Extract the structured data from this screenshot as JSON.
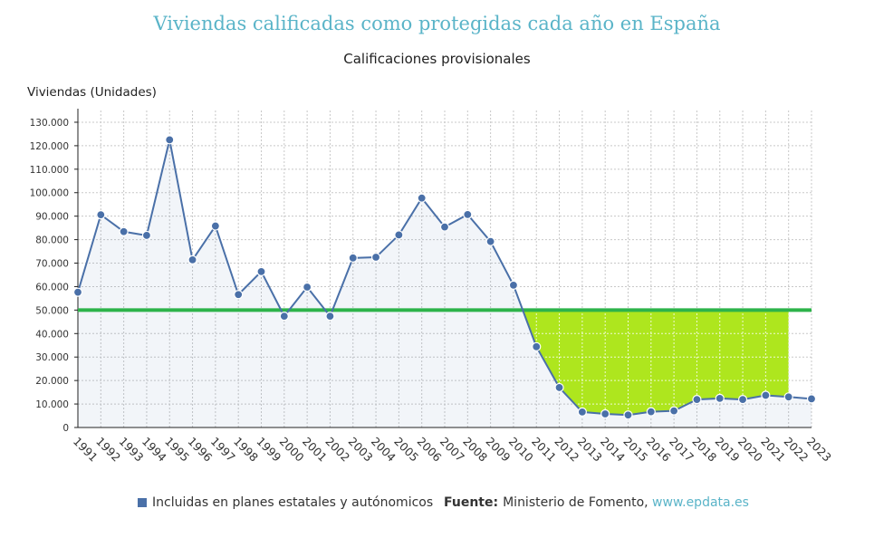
{
  "chart_data": {
    "type": "line",
    "title": "Viviendas calificadas como protegidas cada año en España",
    "subtitle": "Calificaciones provisionales",
    "ylabel": "Viviendas (Unidades)",
    "xlabel": "",
    "ylim": [
      0,
      135000
    ],
    "y_ticks": [
      0,
      10000,
      20000,
      30000,
      40000,
      50000,
      60000,
      70000,
      80000,
      90000,
      100000,
      110000,
      120000,
      130000
    ],
    "y_tick_labels": [
      "0",
      "10.000",
      "20.000",
      "30.000",
      "40.000",
      "50.000",
      "60.000",
      "70.000",
      "80.000",
      "90.000",
      "100.000",
      "110.000",
      "120.000",
      "130.000"
    ],
    "grid": true,
    "categories": [
      "1991",
      "1992",
      "1993",
      "1994",
      "1995",
      "1996",
      "1997",
      "1998",
      "1999",
      "2000",
      "2001",
      "2002",
      "2003",
      "2004",
      "2005",
      "2006",
      "2007",
      "2008",
      "2009",
      "2010",
      "2011",
      "2012",
      "2013",
      "2014",
      "2015",
      "2016",
      "2017",
      "2018",
      "2019",
      "2020",
      "2021",
      "2022",
      "2023"
    ],
    "series": [
      {
        "name": "Incluidas en planes estatales y autónomicos",
        "color": "#4a70a8",
        "values": [
          57600,
          90600,
          83400,
          81800,
          122500,
          71400,
          85800,
          56600,
          66400,
          47400,
          59800,
          47400,
          72200,
          72500,
          82000,
          97700,
          85400,
          90700,
          79200,
          60600,
          34400,
          17000,
          6600,
          5800,
          5300,
          6700,
          7100,
          11900,
          12400,
          11900,
          13700,
          13000,
          12200
        ]
      }
    ],
    "reference_line": {
      "value": 50000,
      "color": "#2db34a"
    },
    "highlight_area": {
      "from": "2010",
      "to": "2022",
      "upper": 50000,
      "color": "#aee61e"
    },
    "legend_position": "bottom-left"
  },
  "legend": {
    "label": "Incluidas en planes estatales y autónomicos",
    "color": "#4a70a8"
  },
  "source": {
    "label": "Fuente:",
    "text": "Ministerio de Fomento,",
    "link": "www.epdata.es"
  }
}
